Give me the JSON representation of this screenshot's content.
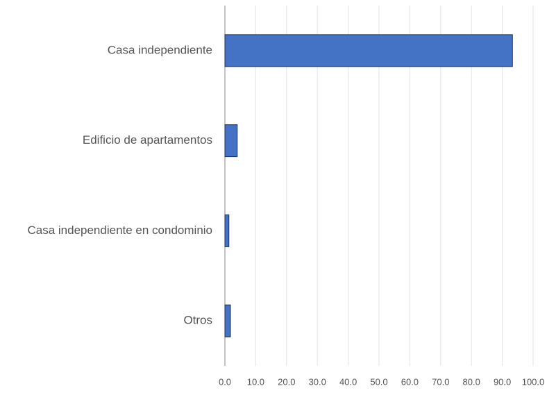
{
  "chart_data": {
    "type": "bar",
    "orientation": "horizontal",
    "categories": [
      "Casa independiente",
      "Edificio de apartamentos",
      "Casa independiente en condominio",
      "Otros"
    ],
    "values": [
      93.3,
      4.0,
      1.3,
      1.8
    ],
    "color": "#4472c4",
    "xlim": [
      0,
      100
    ],
    "xticks": [
      {
        "value": 0,
        "label": "0.0"
      },
      {
        "value": 10,
        "label": "10.0"
      },
      {
        "value": 20,
        "label": "20.0"
      },
      {
        "value": 30,
        "label": "30.0"
      },
      {
        "value": 40,
        "label": "40.0"
      },
      {
        "value": 50,
        "label": "50.0"
      },
      {
        "value": 60,
        "label": "60.0"
      },
      {
        "value": 70,
        "label": "70.0"
      },
      {
        "value": 80,
        "label": "80.0"
      },
      {
        "value": 90,
        "label": "90.0"
      },
      {
        "value": 100,
        "label": "100.0"
      }
    ],
    "grid": true
  }
}
